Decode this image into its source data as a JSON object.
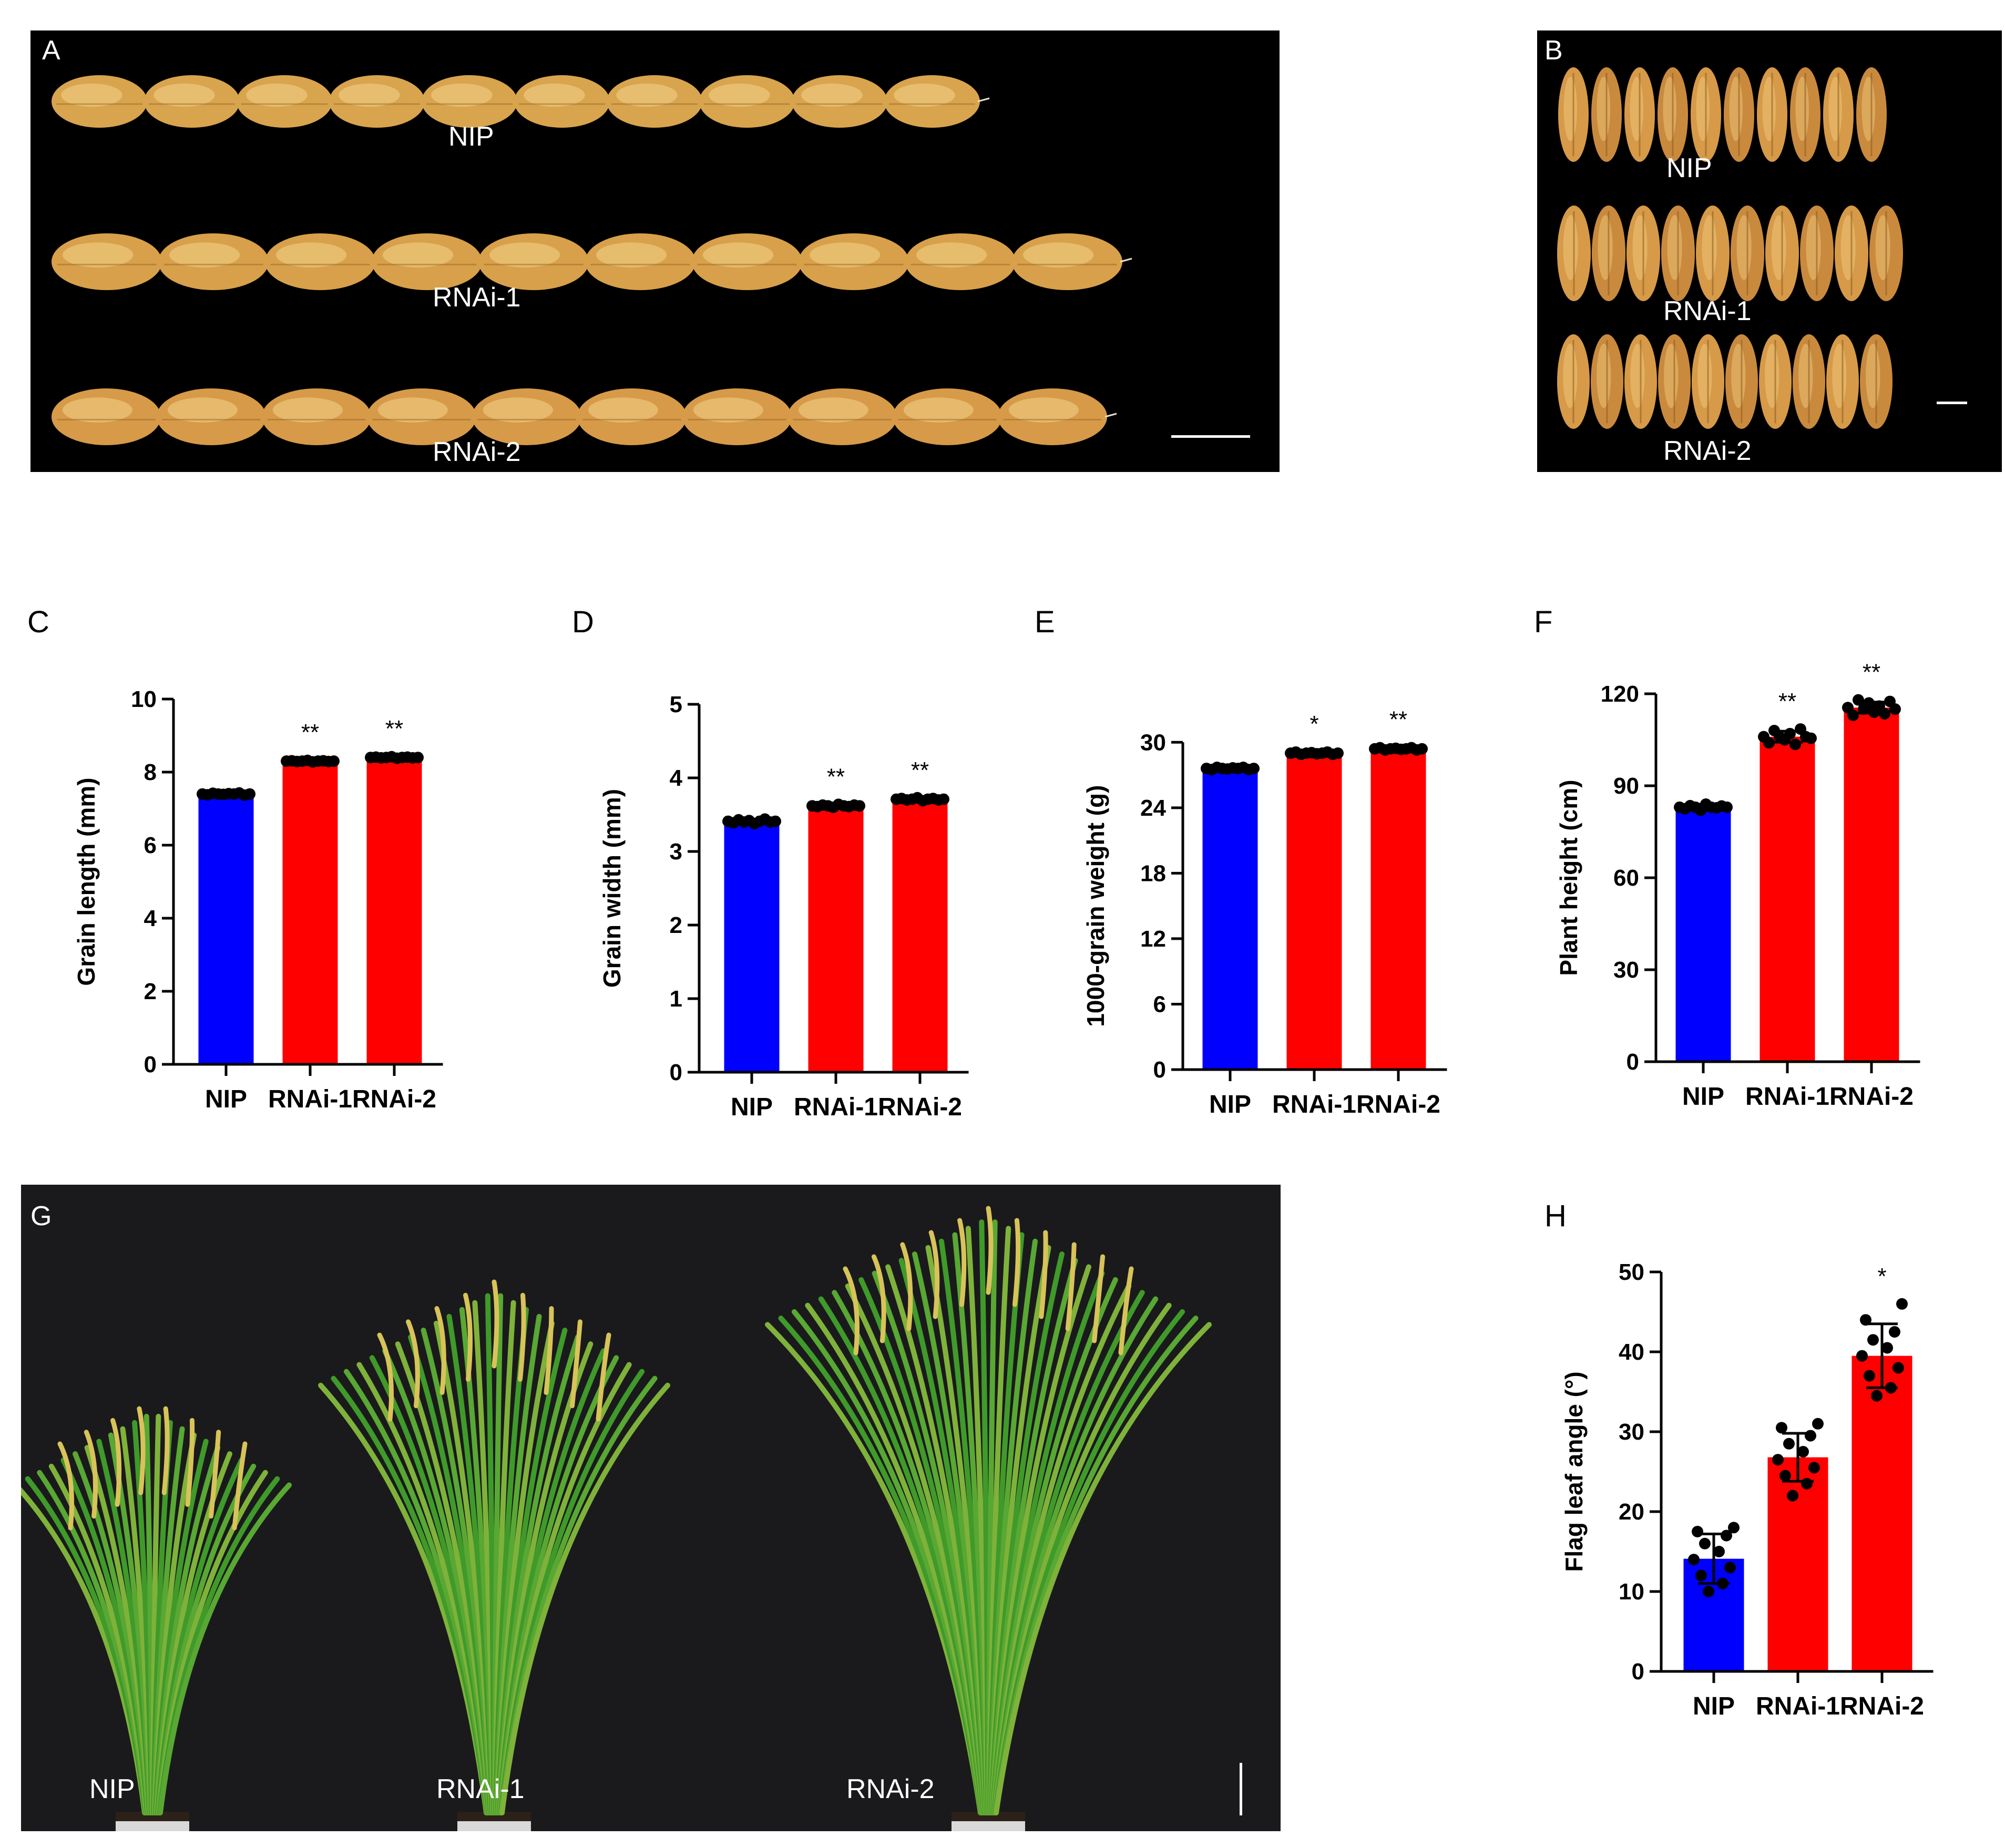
{
  "colors": {
    "nip": "#0000ff",
    "rnai": "#ff0000",
    "background": "#ffffff",
    "photo_bg": "#000000"
  },
  "panels": {
    "A": {
      "letter": "A",
      "rows": [
        "NIP",
        "RNAi-1",
        "RNAi-2"
      ],
      "grains_per_row": [
        10,
        10,
        10
      ]
    },
    "B": {
      "letter": "B",
      "rows": [
        "NIP",
        "RNAi-1",
        "RNAi-2"
      ],
      "grains_per_row": [
        10,
        10,
        10
      ]
    },
    "C": {
      "letter": "C"
    },
    "D": {
      "letter": "D"
    },
    "E": {
      "letter": "E"
    },
    "F": {
      "letter": "F"
    },
    "G": {
      "letter": "G",
      "labels": [
        "NIP",
        "RNAi-1",
        "RNAi-2"
      ]
    },
    "H": {
      "letter": "H"
    }
  },
  "chart_data": [
    {
      "panel": "C",
      "type": "bar",
      "categories": [
        "NIP",
        "RNAi-1",
        "RNAi-2"
      ],
      "values": [
        7.4,
        8.3,
        8.4
      ],
      "errors": [
        0.03,
        0.03,
        0.03
      ],
      "significance": [
        "",
        "**",
        "**"
      ],
      "points": [
        [
          7.4,
          7.38,
          7.42,
          7.4,
          7.39,
          7.41,
          7.4,
          7.43,
          7.37,
          7.4
        ],
        [
          8.3,
          8.31,
          8.29,
          8.3,
          8.32,
          8.28,
          8.3,
          8.31,
          8.29,
          8.3
        ],
        [
          8.4,
          8.41,
          8.39,
          8.4,
          8.42,
          8.38,
          8.4,
          8.41,
          8.39,
          8.4
        ]
      ],
      "xlabel": "",
      "ylabel": "Grain length (mm)",
      "ylim": [
        0,
        10
      ],
      "yticks": [
        "0",
        "2",
        "4",
        "6",
        "8",
        "10"
      ],
      "ytick_values": [
        0,
        2,
        4,
        6,
        8,
        10
      ]
    },
    {
      "panel": "D",
      "type": "bar",
      "categories": [
        "NIP",
        "RNAi-1",
        "RNAi-2"
      ],
      "values": [
        3.41,
        3.62,
        3.71
      ],
      "errors": [
        0.02,
        0.02,
        0.02
      ],
      "significance": [
        "",
        "**",
        "**"
      ],
      "points": [
        [
          3.41,
          3.39,
          3.43,
          3.4,
          3.42,
          3.38,
          3.41,
          3.44,
          3.4,
          3.41
        ],
        [
          3.62,
          3.61,
          3.63,
          3.62,
          3.6,
          3.64,
          3.62,
          3.61,
          3.63,
          3.62
        ],
        [
          3.71,
          3.72,
          3.7,
          3.71,
          3.73,
          3.69,
          3.71,
          3.72,
          3.7,
          3.71
        ]
      ],
      "xlabel": "",
      "ylabel": "Grain width (mm)",
      "ylim": [
        0,
        5
      ],
      "yticks": [
        "0",
        "1",
        "2",
        "3",
        "4",
        "5"
      ],
      "ytick_values": [
        0,
        1,
        2,
        3,
        4,
        5
      ]
    },
    {
      "panel": "E",
      "type": "bar",
      "categories": [
        "NIP",
        "RNAi-1",
        "RNAi-2"
      ],
      "values": [
        27.6,
        29.0,
        29.4
      ],
      "errors": [
        0.15,
        0.15,
        0.15
      ],
      "significance": [
        "",
        "*",
        "**"
      ],
      "points": [
        [
          27.6,
          27.5,
          27.7,
          27.6,
          27.55,
          27.65,
          27.6,
          27.7,
          27.5,
          27.6
        ],
        [
          29.0,
          29.1,
          28.9,
          29.0,
          29.05,
          28.95,
          29.0,
          29.1,
          28.9,
          29.0
        ],
        [
          29.4,
          29.5,
          29.3,
          29.4,
          29.45,
          29.35,
          29.4,
          29.5,
          29.3,
          29.4
        ]
      ],
      "xlabel": "",
      "ylabel": "1000-grain weight (g)",
      "ylim": [
        0,
        33
      ],
      "yticks": [
        "0",
        "6",
        "12",
        "18",
        "24",
        "30"
      ],
      "ytick_values": [
        0,
        6,
        12,
        18,
        24,
        30
      ]
    },
    {
      "panel": "F",
      "type": "bar",
      "categories": [
        "NIP",
        "RNAi-1",
        "RNAi-2"
      ],
      "values": [
        83,
        106,
        115.5
      ],
      "errors": [
        1.0,
        1.8,
        1.8
      ],
      "significance": [
        "",
        "**",
        "**"
      ],
      "points": [
        [
          83,
          82.5,
          83.5,
          83,
          82,
          84,
          83,
          82.8,
          83.4,
          83
        ],
        [
          106,
          104,
          108,
          106,
          105,
          107,
          103.5,
          108.5,
          106,
          105.5
        ],
        [
          115.5,
          113,
          118,
          115,
          117,
          114,
          116,
          113.5,
          117.5,
          115
        ]
      ],
      "xlabel": "",
      "ylabel": "Plant height (cm)",
      "ylim": [
        0,
        120
      ],
      "yticks": [
        "0",
        "30",
        "60",
        "90",
        "120"
      ],
      "ytick_values": [
        0,
        30,
        60,
        90,
        120
      ]
    },
    {
      "panel": "H",
      "type": "bar",
      "categories": [
        "NIP",
        "RNAi-1",
        "RNAi-2"
      ],
      "values": [
        14.1,
        26.8,
        39.5
      ],
      "errors": [
        3.1,
        3.0,
        4.0
      ],
      "significance": [
        "",
        "",
        "*"
      ],
      "points": [
        [
          10,
          11,
          12,
          13,
          14,
          15,
          16,
          17,
          17.5,
          18
        ],
        [
          22,
          23.5,
          24.5,
          25.5,
          26.5,
          27.5,
          28.5,
          29.5,
          30.5,
          31
        ],
        [
          34.5,
          35.5,
          37,
          38,
          39.5,
          40.5,
          41.5,
          42.5,
          44,
          46
        ]
      ],
      "xlabel": "",
      "ylabel": "Flag leaf angle (°)",
      "ylim": [
        0,
        50
      ],
      "yticks": [
        "0",
        "10",
        "20",
        "30",
        "40",
        "50"
      ],
      "ytick_values": [
        0,
        10,
        20,
        30,
        40,
        50
      ]
    }
  ]
}
